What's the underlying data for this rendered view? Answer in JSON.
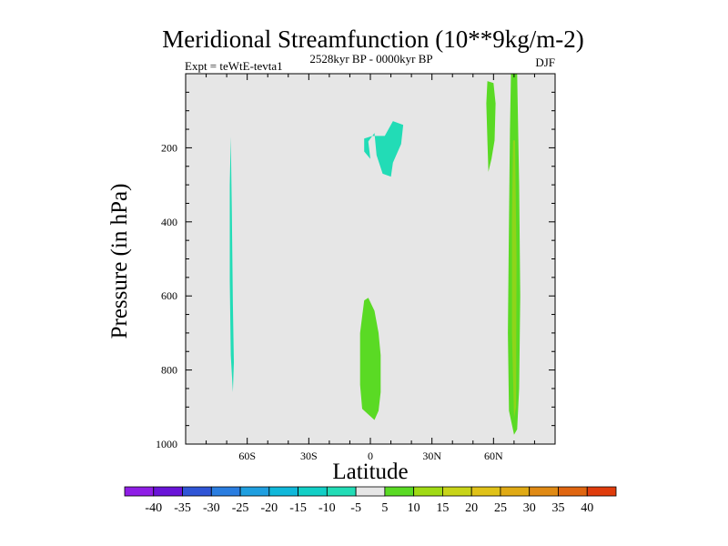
{
  "chart_data": {
    "type": "contour",
    "title": "Meridional Streamfunction (10**9kg/m-2)",
    "left_label": "Expt = teWtE-tevta1",
    "center_label": "2528kyr BP - 0000kyr BP",
    "right_label": "DJF",
    "xlabel": "Latitude",
    "ylabel": "Pressure (in hPa)",
    "xlim": [
      -90,
      90
    ],
    "ylim": [
      1000,
      0
    ],
    "x_ticks": [
      {
        "value": -60,
        "label": "60S"
      },
      {
        "value": -30,
        "label": "30S"
      },
      {
        "value": 0,
        "label": "0"
      },
      {
        "value": 30,
        "label": "30N"
      },
      {
        "value": 60,
        "label": "60N"
      }
    ],
    "y_ticks": [
      {
        "value": 200,
        "label": "200"
      },
      {
        "value": 400,
        "label": "400"
      },
      {
        "value": 600,
        "label": "600"
      },
      {
        "value": 800,
        "label": "800"
      },
      {
        "value": 1000,
        "label": "1000"
      }
    ],
    "background_color": "#e6e6e6",
    "colorbar": {
      "colors": [
        "#8f1ee6",
        "#6a14d8",
        "#2f55d6",
        "#2a7de0",
        "#1f9fe0",
        "#10b8da",
        "#12cfc6",
        "#22dcb6",
        "#e6e6e6",
        "#5ada24",
        "#a0da14",
        "#c8d418",
        "#e0c218",
        "#e0aa14",
        "#e08a14",
        "#e06610",
        "#e03c0c"
      ],
      "labels": [
        "-40",
        "-35",
        "-30",
        "-25",
        "-20",
        "-15",
        "-10",
        "-5",
        "5",
        "10",
        "15",
        "20",
        "25",
        "30",
        "35",
        "40"
      ]
    },
    "regions": [
      {
        "name": "negative-cell-south-polar",
        "level": "-5 to -10",
        "color": "#22dcb6",
        "points": [
          [
            -68,
            170
          ],
          [
            -67.5,
            380
          ],
          [
            -67,
            620
          ],
          [
            -66.5,
            780
          ],
          [
            -67,
            860
          ],
          [
            -68,
            760
          ],
          [
            -68.5,
            560
          ],
          [
            -68.5,
            300
          ]
        ]
      },
      {
        "name": "negative-cell-upper-equator",
        "level": "-5 to -10",
        "color": "#22dcb6",
        "points": [
          [
            -3,
            175
          ],
          [
            1,
            168
          ],
          [
            7,
            168
          ],
          [
            11,
            128
          ],
          [
            16,
            138
          ],
          [
            15,
            190
          ],
          [
            11,
            240
          ],
          [
            10,
            278
          ],
          [
            6,
            270
          ],
          [
            3,
            220
          ],
          [
            2,
            160
          ],
          [
            -1,
            183
          ],
          [
            0,
            230
          ],
          [
            -3,
            210
          ]
        ]
      },
      {
        "name": "positive-cell-lower-equator",
        "level": "5 to 10",
        "color": "#5ada24",
        "points": [
          [
            -5,
            700
          ],
          [
            -3,
            612
          ],
          [
            -1,
            605
          ],
          [
            2,
            640
          ],
          [
            4,
            700
          ],
          [
            5,
            760
          ],
          [
            5,
            860
          ],
          [
            4,
            910
          ],
          [
            2,
            935
          ],
          [
            -1,
            920
          ],
          [
            -4,
            905
          ],
          [
            -5,
            840
          ]
        ]
      },
      {
        "name": "positive-cell-upper-60n",
        "level": "5 to 10",
        "color": "#5ada24",
        "points": [
          [
            57,
            20
          ],
          [
            60,
            25
          ],
          [
            61,
            80
          ],
          [
            60.5,
            180
          ],
          [
            59,
            230
          ],
          [
            57.5,
            265
          ],
          [
            57,
            180
          ],
          [
            56.5,
            80
          ]
        ]
      },
      {
        "name": "positive-cell-70n",
        "level": "5 to 10",
        "color": "#5ada24",
        "points": [
          [
            68.5,
            0
          ],
          [
            71.5,
            0
          ],
          [
            72.5,
            300
          ],
          [
            73,
            600
          ],
          [
            72.5,
            850
          ],
          [
            71.5,
            960
          ],
          [
            70,
            975
          ],
          [
            67.5,
            910
          ],
          [
            67,
            700
          ],
          [
            67.5,
            400
          ],
          [
            68,
            150
          ]
        ]
      },
      {
        "name": "positive-core-70n",
        "level": "10 to 15",
        "color": "#8fd41a",
        "points": [
          [
            69.5,
            180
          ],
          [
            70.5,
            180
          ],
          [
            71.2,
            500
          ],
          [
            71,
            900
          ],
          [
            70,
            930
          ],
          [
            69,
            700
          ],
          [
            69,
            400
          ]
        ]
      }
    ]
  }
}
